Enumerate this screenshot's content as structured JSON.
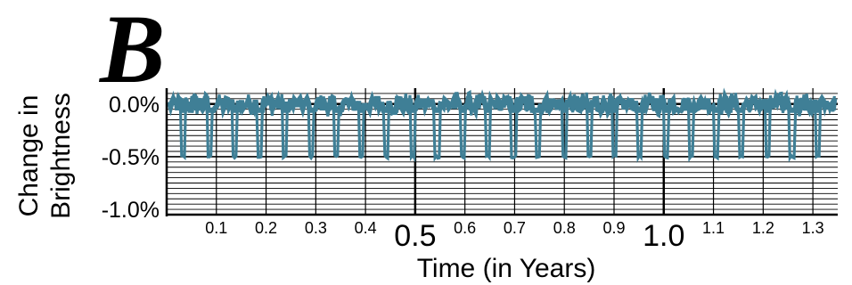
{
  "panel_label": "B",
  "chart_data": {
    "type": "line",
    "title": "",
    "xlabel": "Time (in Years)",
    "ylabel_lines": [
      "Change in",
      "Brightness"
    ],
    "xlim": [
      0,
      1.35
    ],
    "ylim": [
      -1.05,
      0.15
    ],
    "grid": true,
    "x_ticks": [
      {
        "value": 0.1,
        "label": "0.1",
        "major": false
      },
      {
        "value": 0.2,
        "label": "0.2",
        "major": false
      },
      {
        "value": 0.3,
        "label": "0.3",
        "major": false
      },
      {
        "value": 0.4,
        "label": "0.4",
        "major": false
      },
      {
        "value": 0.5,
        "label": "0.5",
        "major": true
      },
      {
        "value": 0.6,
        "label": "0.6",
        "major": false
      },
      {
        "value": 0.7,
        "label": "0.7",
        "major": false
      },
      {
        "value": 0.8,
        "label": "0.8",
        "major": false
      },
      {
        "value": 0.9,
        "label": "0.9",
        "major": false
      },
      {
        "value": 1.0,
        "label": "1.0",
        "major": true
      },
      {
        "value": 1.1,
        "label": "1.1",
        "major": false
      },
      {
        "value": 1.2,
        "label": "1.2",
        "major": false
      },
      {
        "value": 1.3,
        "label": "1.3",
        "major": false
      }
    ],
    "y_ticks": [
      {
        "value": 0.0,
        "label": "0.0%"
      },
      {
        "value": -0.5,
        "label": "-0.5%"
      },
      {
        "value": -1.0,
        "label": "-1.0%"
      }
    ],
    "series": [
      {
        "color": "#3f7f96",
        "transit_depth": -0.5,
        "transit_times": [
          0.034,
          0.086,
          0.136,
          0.188,
          0.238,
          0.29,
          0.34,
          0.392,
          0.442,
          0.494,
          0.544,
          0.596,
          0.646,
          0.698,
          0.748,
          0.8,
          0.85,
          0.902,
          0.952,
          1.004,
          1.054,
          1.106,
          1.156,
          1.208,
          1.258,
          1.31
        ],
        "noise_amplitude": 0.12
      }
    ]
  }
}
